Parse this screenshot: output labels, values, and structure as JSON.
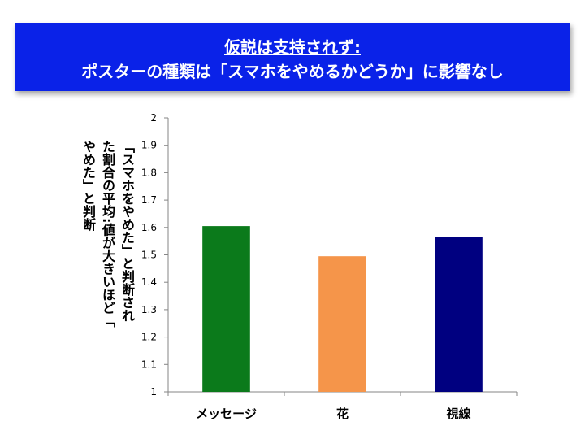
{
  "banner": {
    "title_line1": "仮説は支持されず",
    "title_colon": ":",
    "title_line2": "ポスターの種類は「スマホをやめるかどうか」に影響なし",
    "background": "#0a22e8"
  },
  "chart_data": {
    "type": "bar",
    "categories": [
      "メッセージ",
      "花",
      "視線"
    ],
    "values": [
      1.605,
      1.495,
      1.565
    ],
    "colors": [
      "#0b7a1b",
      "#f5954a",
      "#000080"
    ],
    "ylabel": "「スマホをやめた」と判断された割合の平均:値が大きいほど「やめた」と判断",
    "ylim": [
      1,
      2
    ],
    "yticks": [
      "1",
      "1.1",
      "1.2",
      "1.3",
      "1.4",
      "1.5",
      "1.6",
      "1.7",
      "1.8",
      "1.9",
      "2"
    ],
    "grid": false,
    "legend": "none"
  }
}
